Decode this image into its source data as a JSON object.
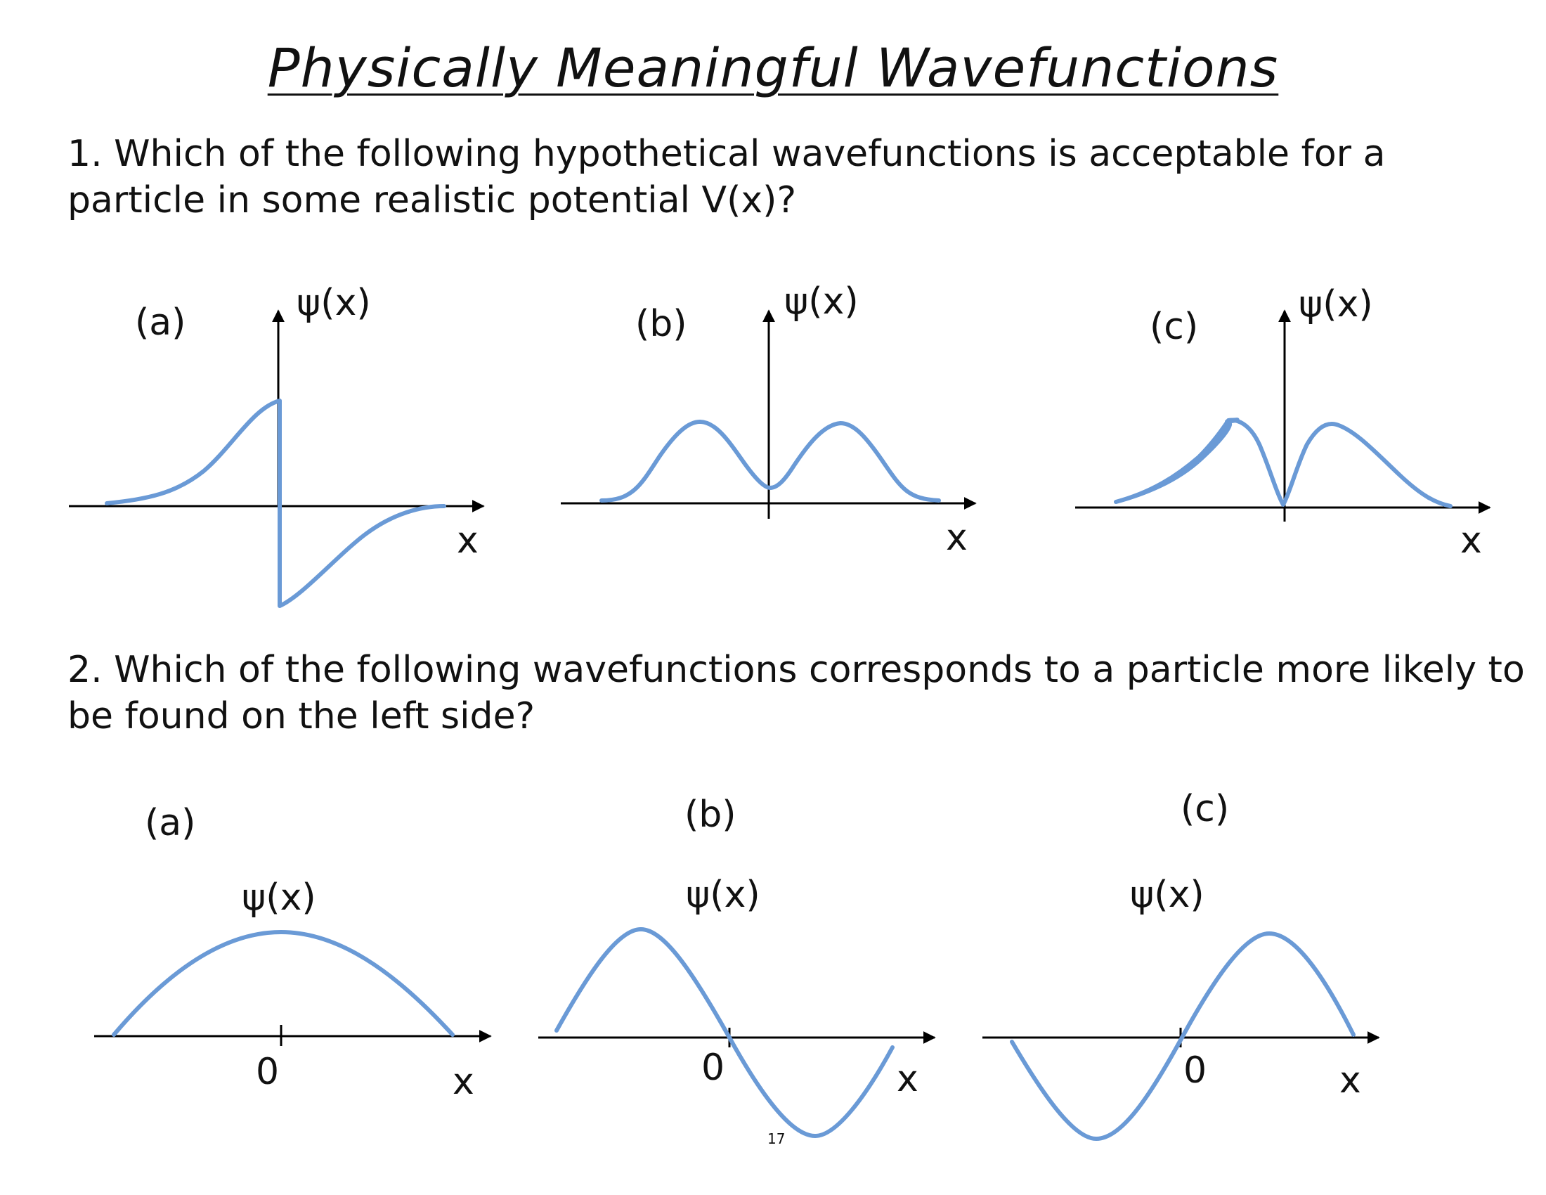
{
  "title": "Physically Meaningful Wavefunctions",
  "questions": [
    {
      "text": "1. Which of the following hypothetical wavefunctions is acceptable for a particle in some realistic potential V(x)?",
      "panels": [
        {
          "label": "(a)",
          "y_label": "ψ(x)",
          "x_label": "x"
        },
        {
          "label": "(b)",
          "y_label": "ψ(x)",
          "x_label": "x"
        },
        {
          "label": "(c)",
          "y_label": "ψ(x)",
          "x_label": "x"
        }
      ]
    },
    {
      "text": "2. Which of the following wavefunctions corresponds to a particle more likely to be found on the left side?",
      "panels": [
        {
          "label": "(a)",
          "y_label": "ψ(x)",
          "x_label": "x",
          "origin_label": "0"
        },
        {
          "label": "(b)",
          "y_label": "ψ(x)",
          "x_label": "x",
          "origin_label": "0"
        },
        {
          "label": "(c)",
          "y_label": "ψ(x)",
          "x_label": "x",
          "origin_label": "0"
        }
      ]
    }
  ],
  "page_number": "17",
  "colors": {
    "curve": "#6a9ad6",
    "axis": "#000000"
  },
  "icons": {
    "axis_arrow": "arrowhead"
  }
}
